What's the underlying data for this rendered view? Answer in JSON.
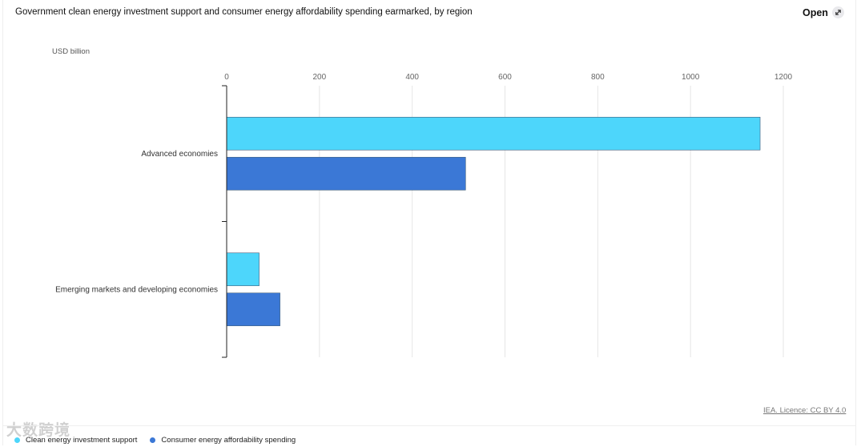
{
  "header": {
    "title": "Government clean energy investment support and consumer energy affordability spending earmarked, by region",
    "open_label": "Open"
  },
  "chart_data": {
    "type": "bar",
    "orientation": "horizontal",
    "title": "Government clean energy investment support and consumer energy affordability spending earmarked, by region",
    "unit_label": "USD billion",
    "categories": [
      "Advanced economies",
      "Emerging markets and developing economies"
    ],
    "series": [
      {
        "name": "Clean energy investment support",
        "color": "#4dd6fb",
        "values": [
          1150,
          70
        ]
      },
      {
        "name": "Consumer energy affordability spending",
        "color": "#3b78d6",
        "values": [
          515,
          115
        ]
      }
    ],
    "xlim": [
      0,
      1200
    ],
    "xticks": [
      0,
      200,
      400,
      600,
      800,
      1000,
      1200
    ],
    "grid": true,
    "legend_position": "bottom-left"
  },
  "footer": {
    "source": "IEA. Licence: CC BY 4.0"
  },
  "watermark": "大数跨境"
}
